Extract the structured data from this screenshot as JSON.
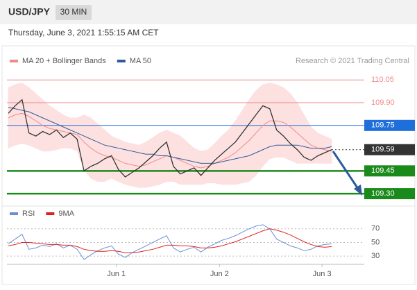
{
  "header": {
    "symbol": "USD/JPY",
    "interval": "30 MIN",
    "timestamp": "Thursday, June 3, 2021 1:55:15 AM CET"
  },
  "chart_data": [
    {
      "type": "line",
      "credit": "Research © 2021 Trading Central",
      "xlim": [
        0,
        47
      ],
      "ylim": [
        109.25,
        110.12
      ],
      "close": [
        109.83,
        109.88,
        109.92,
        109.7,
        109.68,
        109.71,
        109.69,
        109.72,
        109.67,
        109.7,
        109.66,
        109.45,
        109.48,
        109.5,
        109.53,
        109.55,
        109.46,
        109.41,
        109.44,
        109.47,
        109.51,
        109.55,
        109.6,
        109.64,
        109.48,
        109.43,
        109.45,
        109.47,
        109.42,
        109.47,
        109.52,
        109.56,
        109.6,
        109.64,
        109.7,
        109.76,
        109.82,
        109.88,
        109.86,
        109.72,
        109.68,
        109.63,
        109.59,
        109.54,
        109.52,
        109.55,
        109.57,
        109.59
      ],
      "close_color": "#333333",
      "bollinger": {
        "color": "#fde0e0",
        "upper": [
          110.0,
          110.02,
          110.03,
          110.0,
          109.96,
          109.92,
          109.88,
          109.85,
          109.82,
          109.8,
          109.8,
          109.82,
          109.8,
          109.76,
          109.72,
          109.68,
          109.66,
          109.64,
          109.63,
          109.62,
          109.64,
          109.67,
          109.7,
          109.72,
          109.7,
          109.68,
          109.64,
          109.6,
          109.58,
          109.59,
          109.63,
          109.68,
          109.72,
          109.78,
          109.85,
          109.92,
          109.98,
          110.02,
          110.03,
          110.02,
          110.0,
          109.96,
          109.9,
          109.82,
          109.74,
          109.7,
          109.68,
          109.66
        ],
        "lower": [
          109.6,
          109.62,
          109.63,
          109.62,
          109.6,
          109.58,
          109.58,
          109.59,
          109.6,
          109.6,
          109.58,
          109.46,
          109.4,
          109.38,
          109.38,
          109.4,
          109.38,
          109.36,
          109.35,
          109.34,
          109.34,
          109.35,
          109.36,
          109.38,
          109.38,
          109.36,
          109.36,
          109.36,
          109.36,
          109.37,
          109.37,
          109.36,
          109.36,
          109.36,
          109.37,
          109.38,
          109.42,
          109.48,
          109.53,
          109.54,
          109.54,
          109.52,
          109.5,
          109.5,
          109.5,
          109.5,
          109.5,
          109.5
        ]
      },
      "series": [
        {
          "name": "MA 20 + Bollinger Bands",
          "color": "#f08a8a",
          "values": [
            109.8,
            109.82,
            109.83,
            109.81,
            109.78,
            109.75,
            109.73,
            109.72,
            109.71,
            109.7,
            109.69,
            109.64,
            109.6,
            109.57,
            109.55,
            109.54,
            109.52,
            109.5,
            109.49,
            109.48,
            109.49,
            109.51,
            109.53,
            109.55,
            109.54,
            109.52,
            109.5,
            109.48,
            109.47,
            109.48,
            109.5,
            109.52,
            109.54,
            109.57,
            109.61,
            109.65,
            109.7,
            109.75,
            109.78,
            109.78,
            109.77,
            109.74,
            109.7,
            109.66,
            109.62,
            109.6,
            109.59,
            109.58
          ]
        },
        {
          "name": "MA 50",
          "color": "#2e5a9c",
          "values": [
            109.87,
            109.86,
            109.85,
            109.84,
            109.82,
            109.8,
            109.78,
            109.76,
            109.74,
            109.72,
            109.7,
            109.68,
            109.66,
            109.64,
            109.62,
            109.61,
            109.6,
            109.59,
            109.58,
            109.57,
            109.56,
            109.56,
            109.55,
            109.55,
            109.54,
            109.53,
            109.52,
            109.51,
            109.5,
            109.5,
            109.5,
            109.51,
            109.52,
            109.53,
            109.54,
            109.55,
            109.57,
            109.59,
            109.61,
            109.62,
            109.62,
            109.62,
            109.62,
            109.61,
            109.6,
            109.6,
            109.6,
            109.61
          ]
        }
      ],
      "levels": [
        {
          "value": 110.05,
          "label": "110.05",
          "color": "#f08a8a",
          "tag": "text"
        },
        {
          "value": 109.9,
          "label": "109.90",
          "color": "#f08a8a",
          "tag": "text"
        },
        {
          "value": 109.75,
          "label": "109.75",
          "color": "#1e6fdc",
          "tag": "box"
        },
        {
          "value": 109.59,
          "label": "109.59",
          "color": "#333333",
          "tag": "dotted"
        },
        {
          "value": 109.45,
          "label": "109.45",
          "color": "#1a8a1a",
          "tag": "box"
        },
        {
          "value": 109.3,
          "label": "109.30",
          "color": "#1a8a1a",
          "tag": "box"
        }
      ]
    },
    {
      "type": "line",
      "xlim": [
        0,
        47
      ],
      "ylim": [
        21,
        82
      ],
      "yticks": [
        30,
        50,
        70
      ],
      "xticks": [
        {
          "value": 15.7,
          "label": "Jun 1"
        },
        {
          "value": 30.7,
          "label": "Jun 2"
        },
        {
          "value": 45.6,
          "label": "Jun 3"
        }
      ],
      "series": [
        {
          "name": "RSI",
          "color": "#6a8fd8",
          "values": [
            48,
            55,
            62,
            40,
            42,
            46,
            44,
            48,
            42,
            46,
            40,
            25,
            32,
            38,
            42,
            45,
            33,
            28,
            35,
            40,
            45,
            50,
            55,
            60,
            42,
            36,
            40,
            43,
            36,
            43,
            48,
            53,
            56,
            60,
            65,
            70,
            74,
            76,
            70,
            55,
            50,
            45,
            42,
            38,
            40,
            45,
            47,
            48
          ]
        },
        {
          "name": "9MA",
          "color": "#e02020",
          "values": [
            45,
            47,
            50,
            50,
            49,
            48,
            47,
            47,
            46,
            46,
            44,
            40,
            38,
            37,
            37,
            38,
            37,
            35,
            35,
            36,
            38,
            40,
            43,
            46,
            46,
            45,
            45,
            44,
            42,
            42,
            43,
            45,
            48,
            51,
            55,
            59,
            63,
            67,
            70,
            68,
            65,
            61,
            56,
            51,
            47,
            44,
            43,
            44
          ]
        }
      ]
    }
  ]
}
